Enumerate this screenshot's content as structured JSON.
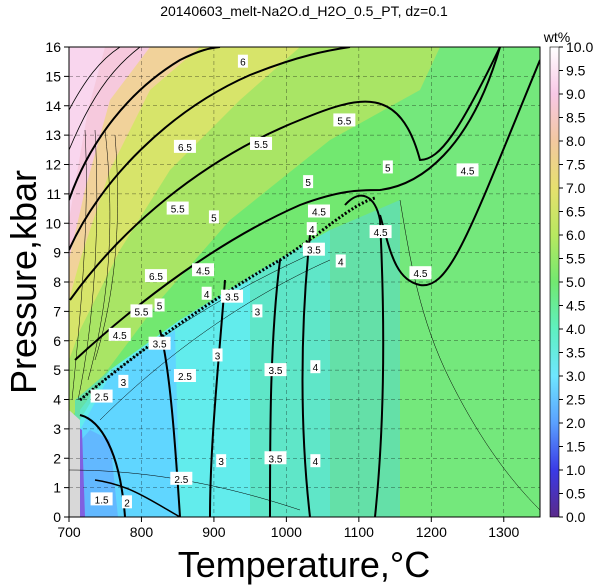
{
  "chart_data": {
    "type": "heatmap",
    "title": "20140603_melt-Na2O.d_H2O_0.5_PT, dz=0.1",
    "xlabel": "Temperature,°C",
    "ylabel": "Pressure,kbar",
    "xlim": [
      700,
      1350
    ],
    "ylim": [
      0,
      16
    ],
    "xticks": [
      "700",
      "800",
      "900",
      "1000",
      "1100",
      "1200",
      "1300"
    ],
    "yticks": [
      "0",
      "1",
      "2",
      "3",
      "4",
      "5",
      "6",
      "7",
      "8",
      "9",
      "10",
      "11",
      "12",
      "13",
      "14",
      "15",
      "16"
    ],
    "grid": true,
    "colorbar": {
      "label": "wt%",
      "min": 0.0,
      "max": 10.0,
      "ticks": [
        "0.0",
        "0.5",
        "1.0",
        "1.5",
        "2.0",
        "2.5",
        "3.0",
        "3.5",
        "4.0",
        "4.5",
        "5.0",
        "5.5",
        "6.0",
        "6.5",
        "7.0",
        "7.5",
        "8.0",
        "8.5",
        "9.0",
        "9.5",
        "10.0"
      ],
      "colors": [
        "#5a2a8a",
        "#3a3ae6",
        "#5aa0ff",
        "#6ee6ff",
        "#5ff0c0",
        "#72e870",
        "#b8e860",
        "#e6e06e",
        "#f2c8a0",
        "#f8c8e6",
        "#ffffff"
      ]
    },
    "contour_levels_labeled": [
      "1.5",
      "2",
      "2.5",
      "3",
      "3.5",
      "4",
      "4.5",
      "5",
      "5.5",
      "6",
      "6.5"
    ],
    "contour_labels": [
      {
        "text": "6",
        "t": 940,
        "p": 15.5
      },
      {
        "text": "5.5",
        "t": 1080,
        "p": 13.5
      },
      {
        "text": "5.5",
        "t": 965,
        "p": 12.7
      },
      {
        "text": "5",
        "t": 1030,
        "p": 11.4
      },
      {
        "text": "5",
        "t": 1140,
        "p": 11.9
      },
      {
        "text": "4.5",
        "t": 1250,
        "p": 11.8
      },
      {
        "text": "4.5",
        "t": 1130,
        "p": 9.7
      },
      {
        "text": "4.5",
        "t": 1185,
        "p": 8.3
      },
      {
        "text": "4.5",
        "t": 1045,
        "p": 10.4
      },
      {
        "text": "5",
        "t": 900,
        "p": 10.2
      },
      {
        "text": "5.5",
        "t": 850,
        "p": 10.5
      },
      {
        "text": "4",
        "t": 1035,
        "p": 9.8
      },
      {
        "text": "3.5",
        "t": 1038,
        "p": 9.1
      },
      {
        "text": "4",
        "t": 1075,
        "p": 8.7
      },
      {
        "text": "4.5",
        "t": 885,
        "p": 8.4
      },
      {
        "text": "4",
        "t": 890,
        "p": 7.6
      },
      {
        "text": "5",
        "t": 825,
        "p": 7.2
      },
      {
        "text": "5.5",
        "t": 800,
        "p": 7.0
      },
      {
        "text": "3.5",
        "t": 925,
        "p": 7.5
      },
      {
        "text": "3",
        "t": 960,
        "p": 7.0
      },
      {
        "text": "4.5",
        "t": 770,
        "p": 6.2
      },
      {
        "text": "3.5",
        "t": 825,
        "p": 5.9
      },
      {
        "text": "3",
        "t": 905,
        "p": 5.5
      },
      {
        "text": "3.5",
        "t": 985,
        "p": 5.0
      },
      {
        "text": "4",
        "t": 1040,
        "p": 5.1
      },
      {
        "text": "2.5",
        "t": 860,
        "p": 4.8
      },
      {
        "text": "3",
        "t": 775,
        "p": 4.6
      },
      {
        "text": "2.5",
        "t": 745,
        "p": 4.1
      },
      {
        "text": "3",
        "t": 910,
        "p": 1.9
      },
      {
        "text": "3.5",
        "t": 985,
        "p": 2.0
      },
      {
        "text": "4",
        "t": 1040,
        "p": 1.9
      },
      {
        "text": "2.5",
        "t": 855,
        "p": 1.3
      },
      {
        "text": "2",
        "t": 780,
        "p": 0.5
      },
      {
        "text": "1.5",
        "t": 745,
        "p": 0.6
      },
      {
        "text": "6.5",
        "t": 860,
        "p": 12.6
      },
      {
        "text": "6.5",
        "t": 820,
        "p": 8.2
      }
    ]
  }
}
